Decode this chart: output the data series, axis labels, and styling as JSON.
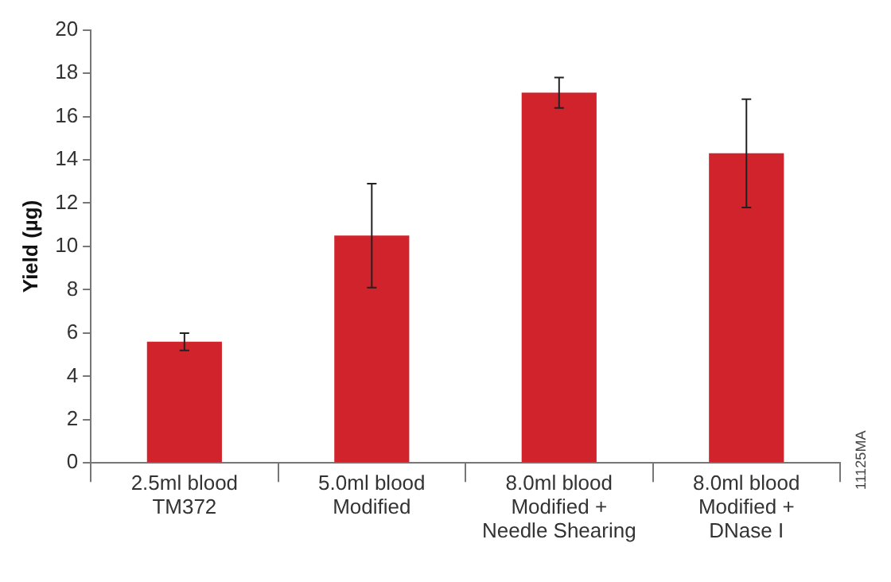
{
  "chart_data": {
    "type": "bar",
    "ylabel": "Yield (µg)",
    "categories": [
      "2.5ml blood\nTM372",
      "5.0ml blood\nModified",
      "8.0ml blood\nModified +\nNeedle Shearing",
      "8.0ml blood\nModified +\nDNase I"
    ],
    "values": [
      5.6,
      10.5,
      17.1,
      14.3
    ],
    "errors": [
      [
        5.2,
        6.0
      ],
      [
        8.1,
        12.9
      ],
      [
        16.4,
        17.8
      ],
      [
        11.8,
        16.8
      ]
    ],
    "color": "#d0232b",
    "ylim": [
      0,
      20
    ],
    "yticks": [
      0,
      2,
      4,
      6,
      8,
      10,
      12,
      14,
      16,
      18,
      20
    ],
    "grid": false,
    "legend": false,
    "annotations": [
      "11125MA"
    ]
  }
}
